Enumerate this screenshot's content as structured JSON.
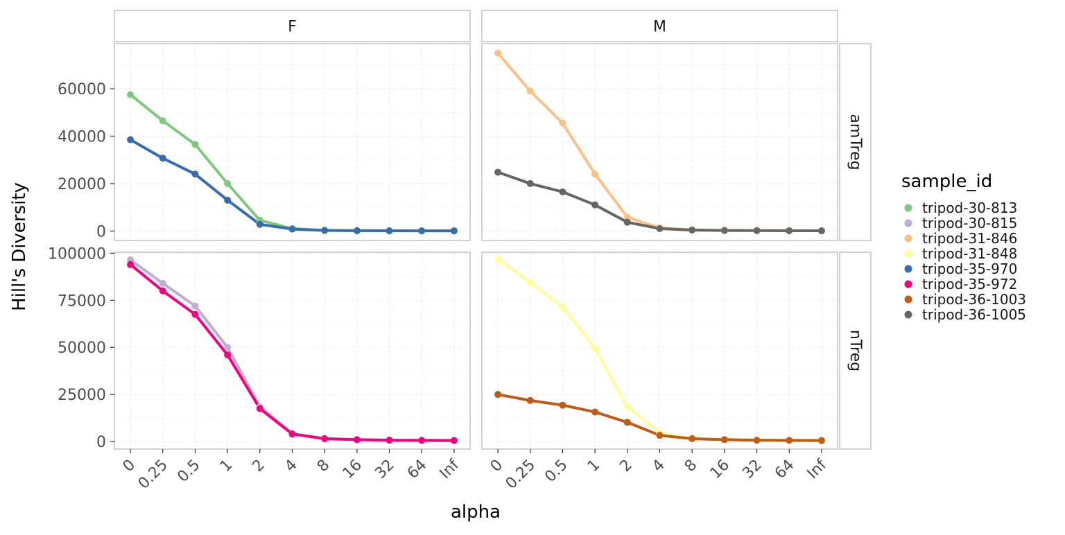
{
  "chart_data": {
    "type": "line",
    "xlabel": "alpha",
    "ylabel": "Hill's Diversity",
    "x": [
      "0",
      "0.25",
      "0.5",
      "1",
      "2",
      "4",
      "8",
      "16",
      "32",
      "64",
      "Inf"
    ],
    "facets": {
      "columns": [
        "F",
        "M"
      ],
      "rows": [
        "amTreg",
        "nTreg"
      ]
    },
    "legend": {
      "title": "sample_id",
      "placement": "right",
      "entries": [
        {
          "name": "tripod-30-813",
          "color": "#7FC97F"
        },
        {
          "name": "tripod-30-815",
          "color": "#BEAED4"
        },
        {
          "name": "tripod-31-846",
          "color": "#FDC086"
        },
        {
          "name": "tripod-31-848",
          "color": "#FFFF99"
        },
        {
          "name": "tripod-35-970",
          "color": "#386CB0"
        },
        {
          "name": "tripod-35-972",
          "color": "#F0027F"
        },
        {
          "name": "tripod-36-1003",
          "color": "#BF5B17"
        },
        {
          "name": "tripod-36-1005",
          "color": "#666666"
        }
      ]
    },
    "panels": [
      {
        "col": "F",
        "row": "amTreg",
        "ylim": [
          -4000,
          79000
        ],
        "yticks": [
          0,
          20000,
          40000,
          60000
        ],
        "ytick_labels": [
          "0",
          "20000",
          "40000",
          "60000"
        ],
        "series": [
          {
            "name": "tripod-30-813",
            "values": [
              57500,
              46500,
              36500,
              20000,
              4500,
              1000,
              300,
              150,
              100,
              80,
              60
            ]
          },
          {
            "name": "tripod-35-970",
            "values": [
              38500,
              30700,
              24000,
              13000,
              2800,
              800,
              250,
              120,
              80,
              60,
              50
            ]
          }
        ]
      },
      {
        "col": "M",
        "row": "amTreg",
        "ylim": [
          -4000,
          79000
        ],
        "yticks": [
          0,
          20000,
          40000,
          60000
        ],
        "ytick_labels": [
          "",
          "",
          "",
          ""
        ],
        "series": [
          {
            "name": "tripod-31-846",
            "values": [
              75000,
              59000,
              45500,
              24000,
              5800,
              1300,
              500,
              300,
              200,
              150,
              100
            ]
          },
          {
            "name": "tripod-36-1005",
            "values": [
              24800,
              20000,
              16500,
              11000,
              3700,
              1000,
              400,
              200,
              150,
              100,
              80
            ]
          }
        ]
      },
      {
        "col": "F",
        "row": "nTreg",
        "ylim": [
          -4000,
          100500
        ],
        "yticks": [
          0,
          25000,
          50000,
          75000,
          100000
        ],
        "ytick_labels": [
          "0",
          "25000",
          "50000",
          "75000",
          "100000"
        ],
        "series": [
          {
            "name": "tripod-30-815",
            "values": [
              96500,
              84000,
              72000,
              50000,
              18500,
              4200,
              1600,
              1000,
              800,
              700,
              600
            ]
          },
          {
            "name": "tripod-35-972",
            "values": [
              94000,
              80000,
              67500,
              46000,
              17500,
              4000,
              1500,
              1000,
              700,
              600,
              500
            ]
          }
        ]
      },
      {
        "col": "M",
        "row": "nTreg",
        "ylim": [
          -4000,
          100500
        ],
        "yticks": [
          0,
          25000,
          50000,
          75000,
          100000
        ],
        "ytick_labels": [
          "",
          "",
          "",
          "",
          ""
        ],
        "series": [
          {
            "name": "tripod-31-848",
            "values": [
              97000,
              84500,
              71500,
              49500,
              18500,
              4500,
              1800,
              1200,
              900,
              800,
              700
            ]
          },
          {
            "name": "tripod-36-1003",
            "values": [
              25000,
              21800,
              19300,
              15700,
              10200,
              3300,
              1500,
              1000,
              700,
              600,
              500
            ]
          }
        ]
      }
    ]
  }
}
